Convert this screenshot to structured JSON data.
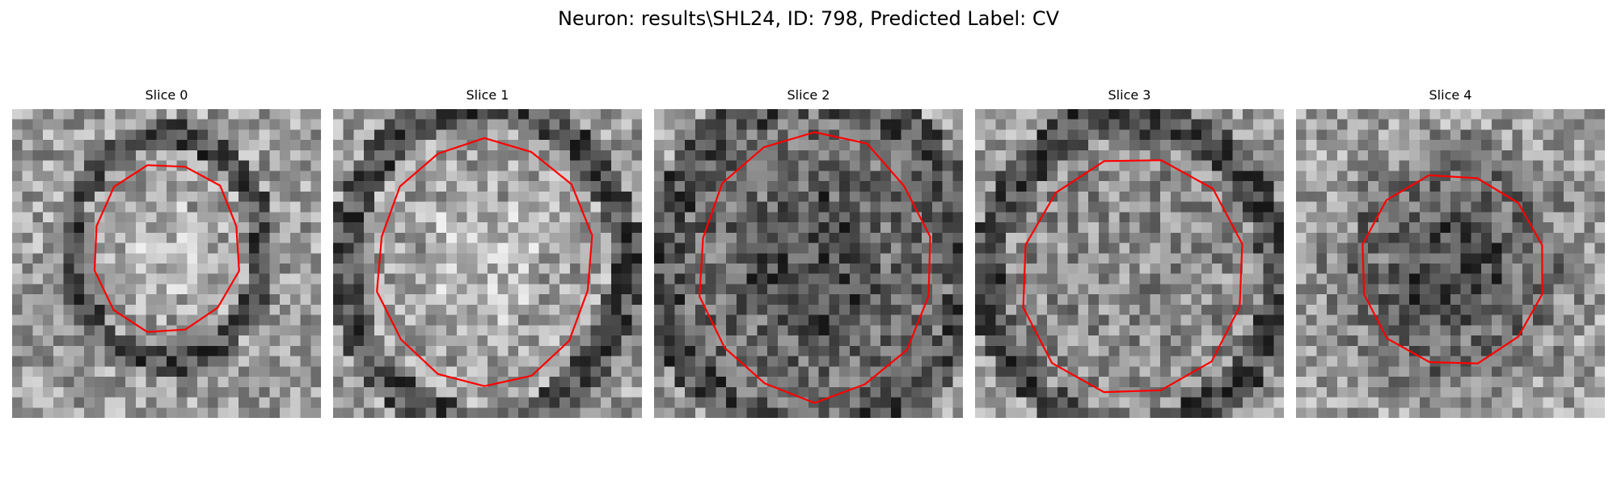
{
  "figure": {
    "title": "Neuron: results\\SHL24, ID: 798, Predicted Label: CV",
    "contour_color": "#ff0000",
    "colormap": "grayscale"
  },
  "panels": [
    {
      "title": "Slice 0",
      "seed": 11,
      "center_tone": "bright",
      "ring_tone": "dark"
    },
    {
      "title": "Slice 1",
      "seed": 23,
      "center_tone": "bright",
      "ring_tone": "dark"
    },
    {
      "title": "Slice 2",
      "seed": 37,
      "center_tone": "dark",
      "ring_tone": "dark"
    },
    {
      "title": "Slice 3",
      "seed": 41,
      "center_tone": "medium",
      "ring_tone": "dark"
    },
    {
      "title": "Slice 4",
      "seed": 53,
      "center_tone": "dark",
      "ring_tone": "medium"
    }
  ]
}
